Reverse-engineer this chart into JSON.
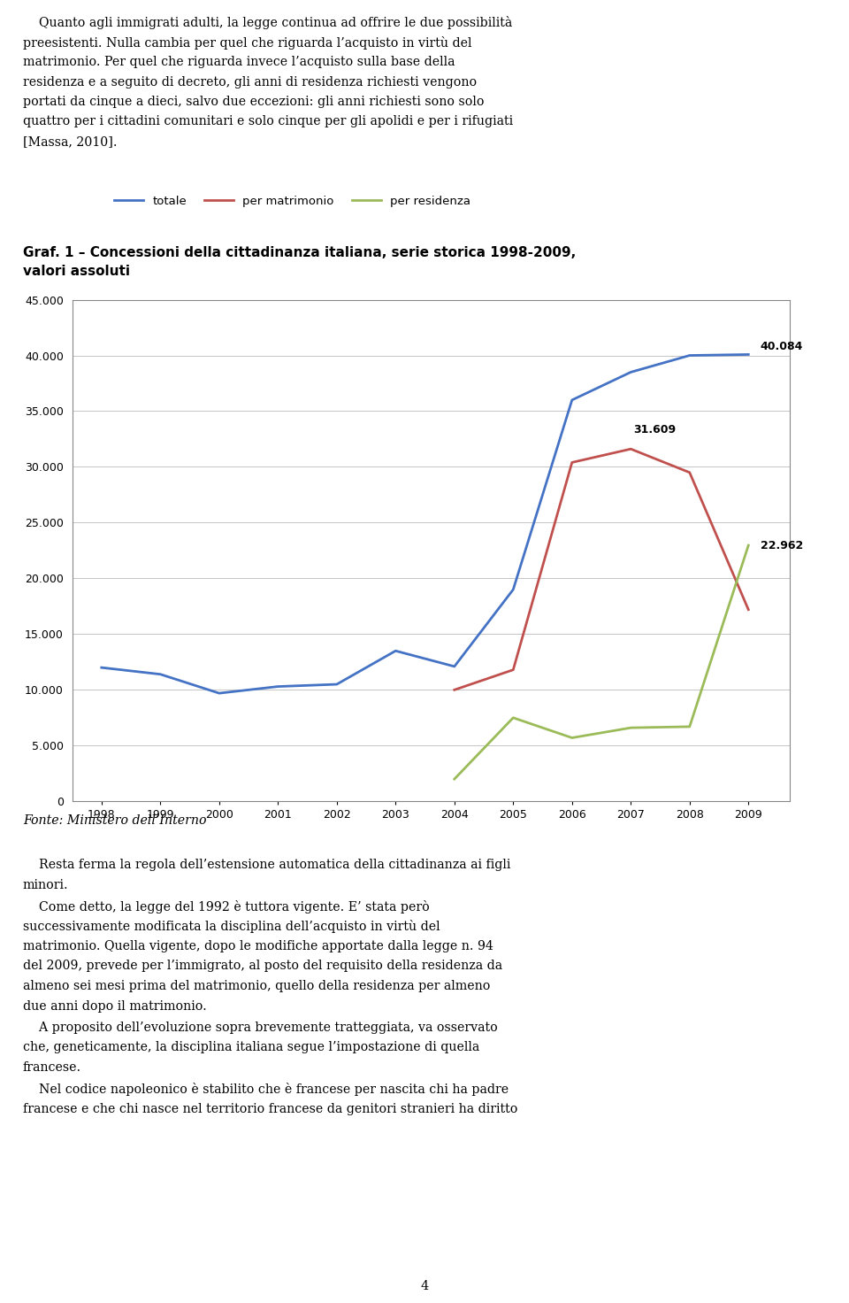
{
  "years": [
    1998,
    1999,
    2000,
    2001,
    2002,
    2003,
    2004,
    2005,
    2006,
    2007,
    2008,
    2009
  ],
  "totale": [
    12000,
    11400,
    9700,
    10300,
    10500,
    13500,
    12100,
    19000,
    36000,
    38500,
    40000,
    40084
  ],
  "per_matrimonio_years": [
    2004,
    2005,
    2006,
    2007,
    2008,
    2009
  ],
  "per_matrimonio_vals": [
    10000,
    11800,
    30400,
    31609,
    29500,
    17200
  ],
  "per_residenza_years": [
    2004,
    2005,
    2006,
    2007,
    2008,
    2009
  ],
  "per_residenza_vals": [
    2000,
    7500,
    5700,
    6600,
    6700,
    22962
  ],
  "color_totale": "#4472C4",
  "color_matrimonio": "#C0504D",
  "color_residenza": "#9BBB59",
  "label_totale": "totale",
  "label_matrimonio": "per matrimonio",
  "label_residenza": "per residenza",
  "annotation_totale": "40.084",
  "annotation_matrimonio": "31.609",
  "annotation_residenza": "22.962",
  "ylim": [
    0,
    45000
  ],
  "yticks": [
    0,
    5000,
    10000,
    15000,
    20000,
    25000,
    30000,
    35000,
    40000,
    45000
  ],
  "page_number": "4"
}
